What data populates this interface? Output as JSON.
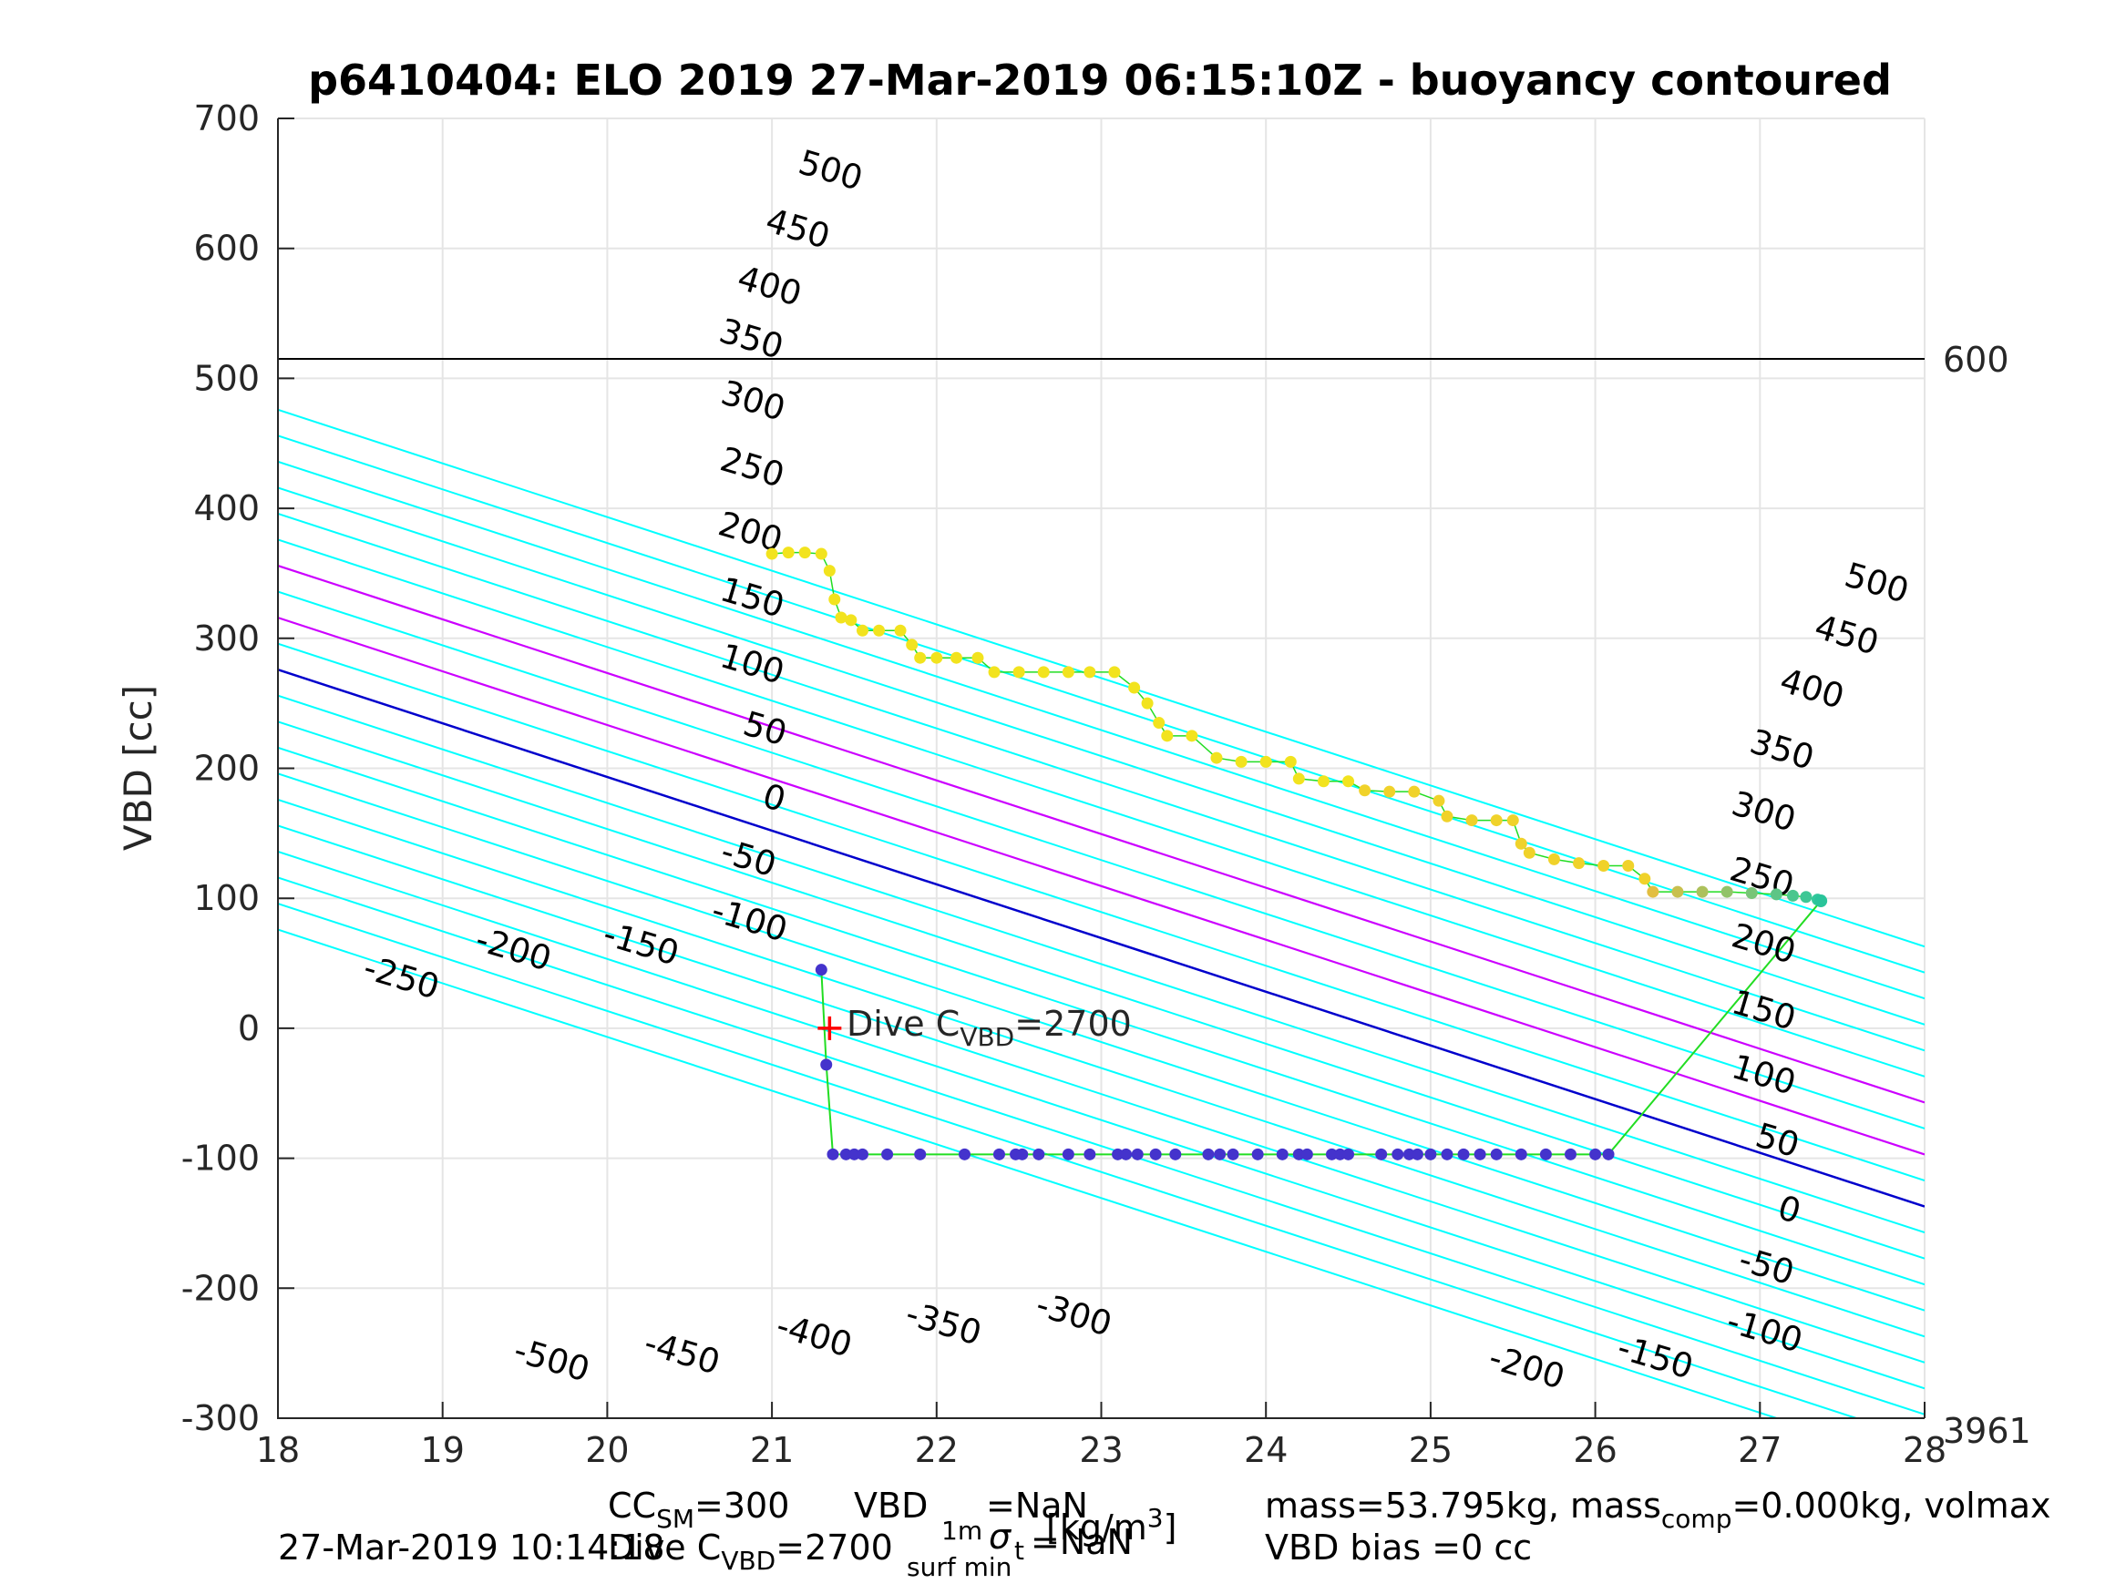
{
  "chart_data": {
    "type": "scatter",
    "title": "p6410404: ELO 2019 27-Mar-2019 06:15:10Z - buoyancy contoured",
    "xlabel_parts": {
      "pre": "[kg/m",
      "sup": "3",
      "post": "]"
    },
    "ylabel": "VBD [cc]",
    "xlim": [
      18,
      28
    ],
    "ylim": [
      -300,
      700
    ],
    "xticks": [
      "18",
      "19",
      "20",
      "21",
      "22",
      "23",
      "24",
      "25",
      "26",
      "27",
      "28"
    ],
    "yticks": [
      "-300",
      "-200",
      "-100",
      "0",
      "100",
      "200",
      "300",
      "400",
      "500",
      "600",
      "700"
    ],
    "grid": true,
    "right_labels": {
      "top": "600",
      "bottom": "3961"
    },
    "reference_line_y": 515,
    "contour_levels": [
      -500,
      -450,
      -400,
      -350,
      -300,
      -250,
      -200,
      -150,
      -100,
      -50,
      0,
      50,
      100,
      150,
      200,
      250,
      300,
      350,
      400,
      450,
      500
    ],
    "contour_labels_left": [
      "500",
      "450",
      "400",
      "350",
      "300",
      "250",
      "200",
      "150",
      "100",
      "50",
      "0",
      "-50",
      "-100",
      "-150",
      "-200",
      "-250",
      "-500",
      "-450",
      "-400",
      "-350",
      "-300"
    ],
    "contour_labels_right": [
      "500",
      "450",
      "400",
      "350",
      "300",
      "250",
      "200",
      "150",
      "100",
      "50",
      "0",
      "-50",
      "-100",
      "-150",
      "-200"
    ],
    "dive_marker": {
      "x": 21.35,
      "y": 0,
      "label_pre": "Dive C",
      "label_sub": "VBD",
      "label_post": "=2700"
    },
    "descent_points": [
      [
        21.3,
        45
      ],
      [
        21.33,
        -28
      ],
      [
        21.37,
        -97
      ],
      [
        21.45,
        -97
      ],
      [
        21.5,
        -97
      ],
      [
        21.55,
        -97
      ],
      [
        21.7,
        -97
      ],
      [
        21.9,
        -97
      ],
      [
        22.17,
        -97
      ],
      [
        22.38,
        -97
      ],
      [
        22.48,
        -97
      ],
      [
        22.52,
        -97
      ],
      [
        22.62,
        -97
      ],
      [
        22.8,
        -97
      ],
      [
        22.93,
        -97
      ],
      [
        23.1,
        -97
      ],
      [
        23.15,
        -97
      ],
      [
        23.22,
        -97
      ],
      [
        23.33,
        -97
      ],
      [
        23.45,
        -97
      ],
      [
        23.65,
        -97
      ],
      [
        23.72,
        -97
      ],
      [
        23.8,
        -97
      ],
      [
        23.95,
        -97
      ],
      [
        24.1,
        -97
      ],
      [
        24.2,
        -97
      ],
      [
        24.25,
        -97
      ],
      [
        24.4,
        -97
      ],
      [
        24.45,
        -97
      ],
      [
        24.5,
        -97
      ],
      [
        24.7,
        -97
      ],
      [
        24.8,
        -97
      ],
      [
        24.87,
        -97
      ],
      [
        24.92,
        -97
      ],
      [
        25.0,
        -97
      ],
      [
        25.1,
        -97
      ],
      [
        25.2,
        -97
      ],
      [
        25.3,
        -97
      ],
      [
        25.4,
        -97
      ],
      [
        25.55,
        -97
      ],
      [
        25.7,
        -97
      ],
      [
        25.85,
        -97
      ],
      [
        26.0,
        -97
      ],
      [
        26.08,
        -97
      ]
    ],
    "ascent_points": [
      [
        21.0,
        365
      ],
      [
        21.1,
        366
      ],
      [
        21.2,
        366
      ],
      [
        21.3,
        365
      ],
      [
        21.35,
        352
      ],
      [
        21.38,
        330
      ],
      [
        21.42,
        316
      ],
      [
        21.48,
        314
      ],
      [
        21.55,
        306
      ],
      [
        21.65,
        306
      ],
      [
        21.78,
        306
      ],
      [
        21.85,
        295
      ],
      [
        21.9,
        285
      ],
      [
        22.0,
        285
      ],
      [
        22.12,
        285
      ],
      [
        22.25,
        285
      ],
      [
        22.35,
        274
      ],
      [
        22.5,
        274
      ],
      [
        22.65,
        274
      ],
      [
        22.8,
        274
      ],
      [
        22.93,
        274
      ],
      [
        23.08,
        274
      ],
      [
        23.2,
        262
      ],
      [
        23.28,
        250
      ],
      [
        23.35,
        235
      ],
      [
        23.4,
        225
      ],
      [
        23.55,
        225
      ],
      [
        23.7,
        208
      ],
      [
        23.85,
        205
      ],
      [
        24.0,
        205
      ],
      [
        24.15,
        205
      ],
      [
        24.2,
        192
      ],
      [
        24.35,
        190
      ],
      [
        24.5,
        190
      ],
      [
        24.6,
        183
      ],
      [
        24.75,
        182
      ],
      [
        24.9,
        182
      ],
      [
        25.05,
        175
      ],
      [
        25.1,
        163
      ],
      [
        25.25,
        160
      ],
      [
        25.4,
        160
      ],
      [
        25.5,
        160
      ],
      [
        25.55,
        142
      ],
      [
        25.6,
        135
      ],
      [
        25.75,
        130
      ],
      [
        25.9,
        127
      ],
      [
        26.05,
        125
      ],
      [
        26.2,
        125
      ],
      [
        26.3,
        115
      ],
      [
        26.35,
        105
      ],
      [
        26.5,
        105
      ],
      [
        26.65,
        105
      ],
      [
        26.8,
        105
      ],
      [
        26.95,
        104
      ],
      [
        27.1,
        103
      ],
      [
        27.2,
        102
      ],
      [
        27.28,
        101
      ],
      [
        27.35,
        99
      ]
    ],
    "surface_point": [
      27.37,
      98
    ],
    "colors": {
      "contour": "#00ffff",
      "zero_line": "#0000cc",
      "magenta": "#cc00ff",
      "descent": "#4433cc",
      "ascent": "#f2e31e",
      "trajectory": "#22dd22",
      "marker": "#ff0000",
      "grid": "#e5e5e5"
    }
  },
  "footer": {
    "cc_pre": "CC",
    "cc_sub": "SM",
    "cc_post": "=300",
    "vbd_text": "VBD",
    "sigma_sup": "1m",
    "sigma_sym": "σ",
    "sigma_post": "t",
    "sigma_sub": "surf min",
    "nan": "=NaN",
    "nan2": "=NaN",
    "dive_pre": "Dive C",
    "dive_sub": "VBD",
    "dive_post": "=2700",
    "timestamp": "27-Mar-2019 10:14:18",
    "mass_text": "mass=53.795kg, mass",
    "mass_sub": "comp",
    "mass_post": "=0.000kg, volmax",
    "vbd_bias": "VBD bias =0 cc"
  }
}
